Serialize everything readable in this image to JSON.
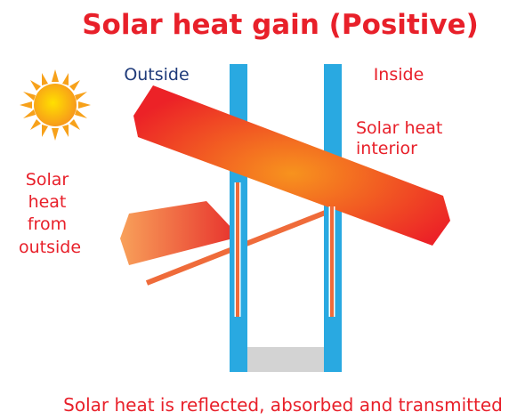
{
  "title": "Solar heat gain (Positive)",
  "labels": {
    "outside": "Outside",
    "inside": "Inside",
    "interior": [
      "Solar heat",
      "interior"
    ],
    "exterior": [
      "Solar",
      "heat",
      "from",
      "outside"
    ]
  },
  "caption": "Solar heat is reflected, absorbed and transmitted"
}
